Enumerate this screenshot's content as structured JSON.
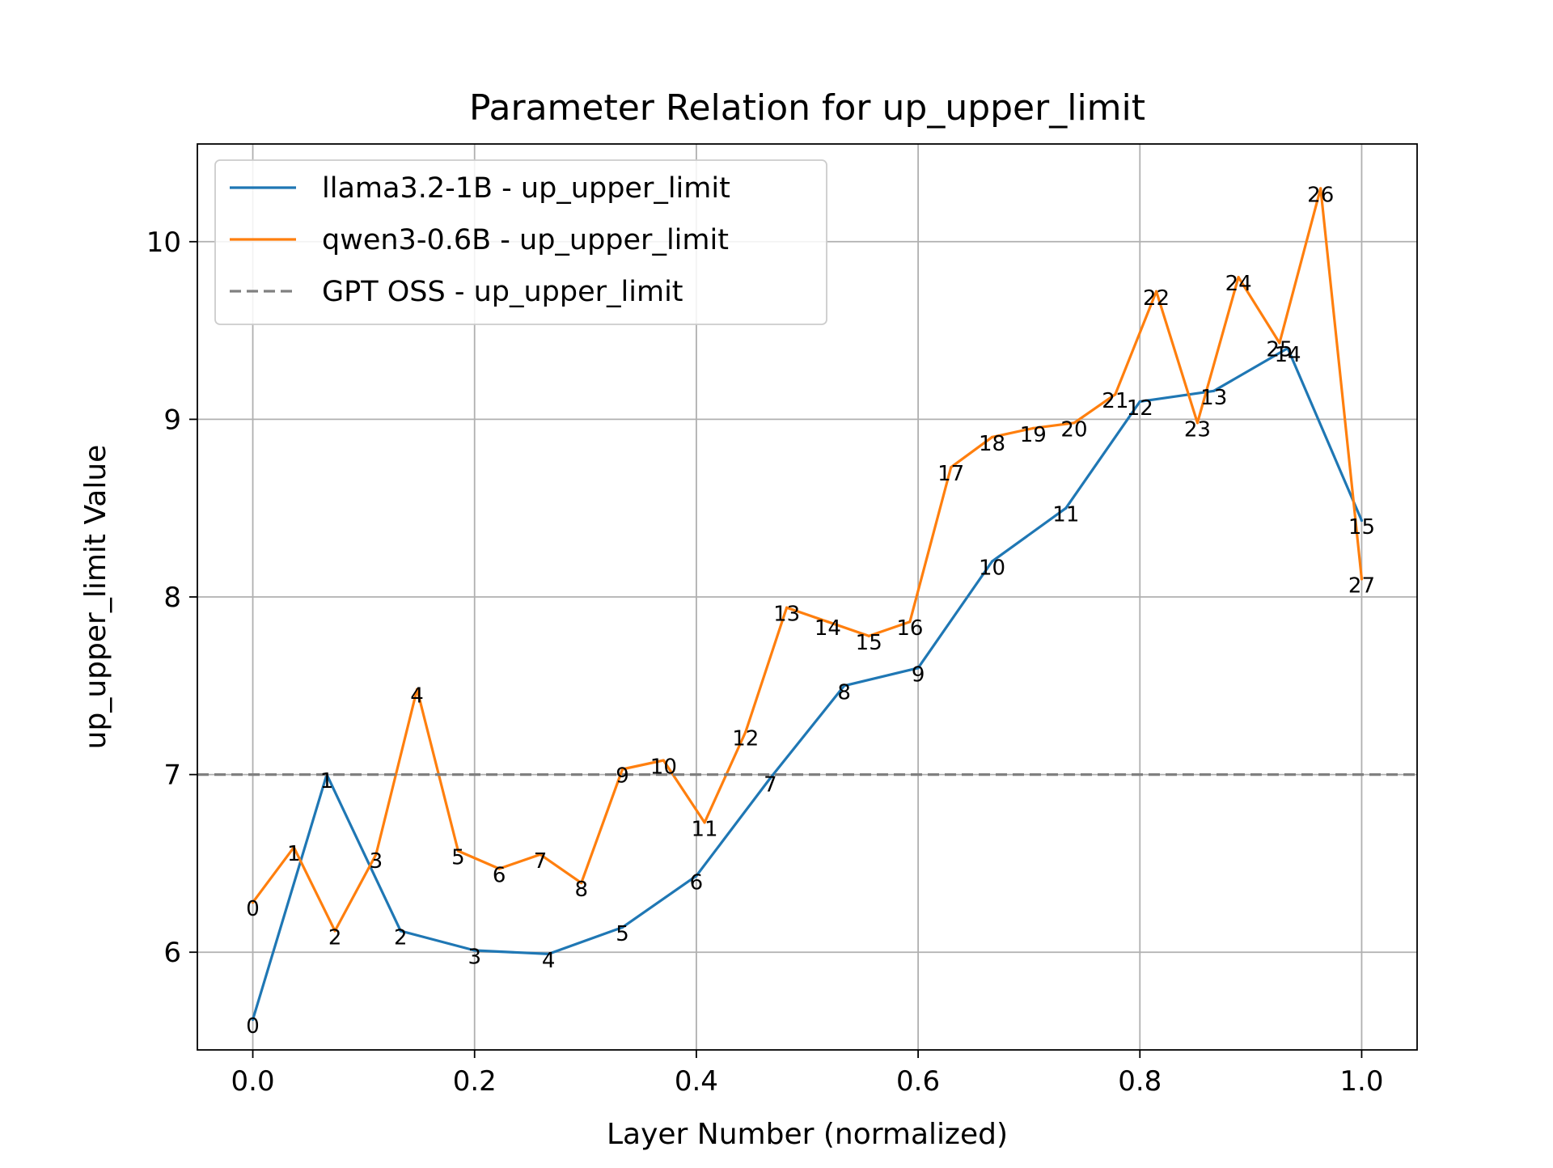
{
  "chart_data": {
    "type": "line",
    "title": "Parameter Relation for up_upper_limit",
    "xlabel": "Layer Number (normalized)",
    "ylabel": "up_upper_limit Value",
    "xlim": [
      -0.05,
      1.05
    ],
    "ylim": [
      5.45,
      10.55
    ],
    "xticks": [
      0.0,
      0.2,
      0.4,
      0.6,
      0.8,
      1.0
    ],
    "xtick_labels": [
      "0.0",
      "0.2",
      "0.4",
      "0.6",
      "0.8",
      "1.0"
    ],
    "yticks": [
      6,
      7,
      8,
      9,
      10
    ],
    "ytick_labels": [
      "6",
      "7",
      "8",
      "9",
      "10"
    ],
    "grid": true,
    "legend_position": "top-left",
    "series": [
      {
        "name": "llama3.2-1B - up_upper_limit",
        "color": "#1f77b4",
        "style": "solid",
        "x": [
          0.0,
          0.0667,
          0.1333,
          0.2,
          0.2667,
          0.3333,
          0.4,
          0.4667,
          0.5333,
          0.6,
          0.6667,
          0.7333,
          0.8,
          0.8667,
          0.9333,
          1.0
        ],
        "y": [
          5.62,
          7.0,
          6.12,
          6.01,
          5.99,
          6.14,
          6.43,
          6.98,
          7.5,
          7.6,
          8.2,
          8.5,
          9.1,
          9.16,
          9.4,
          8.43
        ],
        "labels": [
          "0",
          "1",
          "2",
          "3",
          "4",
          "5",
          "6",
          "7",
          "8",
          "9",
          "10",
          "11",
          "12",
          "13",
          "14",
          "15"
        ]
      },
      {
        "name": "qwen3-0.6B - up_upper_limit",
        "color": "#ff7f0e",
        "style": "solid",
        "x": [
          0.0,
          0.037,
          0.0741,
          0.1111,
          0.1481,
          0.1852,
          0.2222,
          0.2593,
          0.2963,
          0.3333,
          0.3704,
          0.4074,
          0.4444,
          0.4815,
          0.5185,
          0.5556,
          0.5926,
          0.6296,
          0.6667,
          0.7037,
          0.7407,
          0.7778,
          0.8148,
          0.8519,
          0.8889,
          0.9259,
          0.963,
          1.0
        ],
        "y": [
          6.28,
          6.59,
          6.12,
          6.55,
          7.48,
          6.57,
          6.47,
          6.55,
          6.39,
          7.03,
          7.08,
          6.73,
          7.24,
          7.94,
          7.86,
          7.78,
          7.86,
          8.73,
          8.9,
          8.95,
          8.98,
          9.14,
          9.72,
          8.98,
          9.8,
          9.43,
          10.3,
          8.1
        ],
        "labels": [
          "0",
          "1",
          "2",
          "3",
          "4",
          "5",
          "6",
          "7",
          "8",
          "9",
          "10",
          "11",
          "12",
          "13",
          "14",
          "15",
          "16",
          "17",
          "18",
          "19",
          "20",
          "21",
          "22",
          "23",
          "24",
          "25",
          "26",
          "27"
        ]
      },
      {
        "name": "GPT OSS - up_upper_limit",
        "color": "#808080",
        "style": "dashed",
        "y_constant": 7.0
      }
    ]
  }
}
